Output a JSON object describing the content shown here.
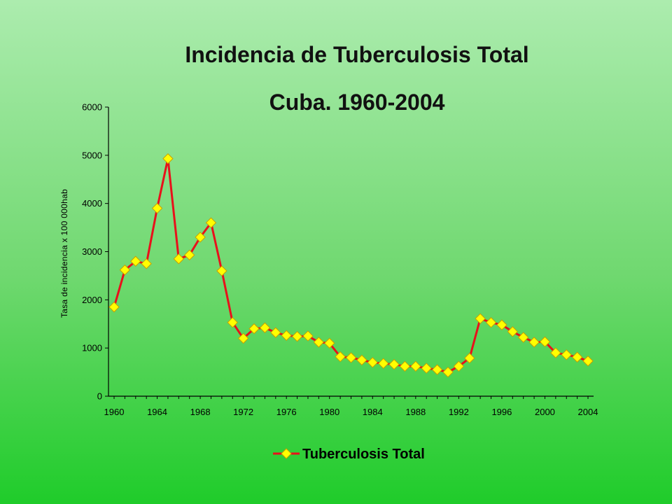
{
  "chart_data": {
    "type": "line",
    "title": "Incidencia de Tuberculosis Total",
    "subtitle": "Cuba. 1960-2004",
    "xlabel": "",
    "ylabel": "Tasa de incidencia x 100 000hab",
    "xlim": [
      1960,
      2004
    ],
    "ylim": [
      0,
      6000
    ],
    "x_ticks": [
      "1960",
      "1964",
      "1968",
      "1972",
      "1976",
      "1980",
      "1984",
      "1988",
      "1992",
      "1996",
      "2000",
      "2004"
    ],
    "y_ticks": [
      "0",
      "1000",
      "2000",
      "3000",
      "4000",
      "5000",
      "6000"
    ],
    "grid": false,
    "legend": "bottom",
    "line_color": "#e8111b",
    "marker_color": "#ffff00",
    "marker_edge_color": "#c8a000",
    "series": [
      {
        "name": "Tuberculosis Total",
        "x": [
          1960,
          1961,
          1962,
          1963,
          1964,
          1965,
          1966,
          1967,
          1968,
          1969,
          1970,
          1971,
          1972,
          1973,
          1974,
          1975,
          1976,
          1977,
          1978,
          1979,
          1980,
          1981,
          1982,
          1983,
          1984,
          1985,
          1986,
          1987,
          1988,
          1989,
          1990,
          1991,
          1992,
          1993,
          1994,
          1995,
          1996,
          1997,
          1998,
          1999,
          2000,
          2001,
          2002,
          2003,
          2004
        ],
        "values": [
          1850,
          2620,
          2800,
          2750,
          3900,
          4930,
          2850,
          2930,
          3300,
          3600,
          2600,
          1530,
          1200,
          1400,
          1420,
          1320,
          1260,
          1240,
          1250,
          1120,
          1100,
          820,
          800,
          750,
          700,
          680,
          660,
          620,
          620,
          580,
          550,
          500,
          620,
          790,
          1610,
          1530,
          1480,
          1340,
          1220,
          1120,
          1130,
          900,
          860,
          810,
          730
        ]
      }
    ]
  }
}
